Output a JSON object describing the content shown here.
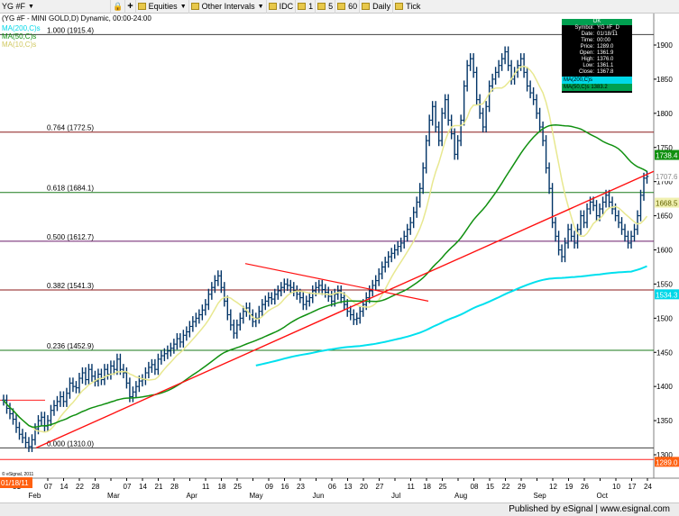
{
  "toolbar": {
    "symbol": "YG #F",
    "equities": "Equities",
    "other_intervals": "Other Intervals",
    "idc": "IDC",
    "i1": "1",
    "i5": "5",
    "i60": "60",
    "daily": "Daily",
    "tick": "Tick"
  },
  "chart": {
    "title": "(YG #F - MINI GOLD,D) Dynamic, 00:00-24:00",
    "legend_ma200": "MA(200,C)s",
    "legend_ma50": "MA(50,C)s",
    "legend_ma10": "MA(10,C)s",
    "copyright": "© eSignal, 2011",
    "date_label": "01/18/11"
  },
  "databox": {
    "header": "OK",
    "rows": [
      {
        "k": "Symbol:",
        "v": "YG #F_D"
      },
      {
        "k": "Date:",
        "v": "01/18/11"
      },
      {
        "k": "Time:",
        "v": "00:00"
      },
      {
        "k": "Price:",
        "v": "1289.0"
      },
      {
        "k": "Open:",
        "v": "1361.9"
      },
      {
        "k": "High:",
        "v": "1376.0"
      },
      {
        "k": "Low:",
        "v": "1361.1"
      },
      {
        "k": "Close:",
        "v": "1367.8"
      }
    ],
    "ma200_line": "MA(200,C)s",
    "ma50_line": "MA(50,C)s 1383.2"
  },
  "footer": {
    "published": "Published by eSignal | www.esignal.com"
  },
  "colors": {
    "ma200": "#00e0ee",
    "ma50": "#109010",
    "ma10": "#e8e890",
    "trend": "#ff1010",
    "bars": "#003366"
  },
  "chart_data": {
    "type": "ohlc",
    "y_ticks": [
      1300,
      1350,
      1400,
      1450,
      1500,
      1550,
      1600,
      1650,
      1700,
      1750,
      1800,
      1850,
      1900
    ],
    "x_ticks": [
      "31",
      "Feb",
      "07",
      "14",
      "22",
      "28",
      "Mar",
      "07",
      "14",
      "21",
      "28",
      "Apr",
      "11",
      "18",
      "25",
      "May",
      "09",
      "16",
      "23",
      "Jun",
      "06",
      "13",
      "20",
      "27",
      "Jul",
      "11",
      "18",
      "25",
      "Aug",
      "08",
      "15",
      "22",
      "29",
      "Sep",
      "12",
      "19",
      "26",
      "Oct",
      "10",
      "17",
      "24"
    ],
    "fib_levels": [
      {
        "label": "1.000 (1915.4)",
        "value": 1915.4,
        "color": "#404040"
      },
      {
        "label": "0.764 (1772.5)",
        "value": 1772.5,
        "color": "#8b1a1a"
      },
      {
        "label": "0.618 (1684.1)",
        "value": 1684.1,
        "color": "#1a7a1a"
      },
      {
        "label": "0.500 (1612.7)",
        "value": 1612.7,
        "color": "#6a1a6a"
      },
      {
        "label": "0.382 (1541.3)",
        "value": 1541.3,
        "color": "#8b1a1a"
      },
      {
        "label": "0.236 (1452.9)",
        "value": 1452.9,
        "color": "#1a7a1a"
      },
      {
        "label": "0.000 (1310.0)",
        "value": 1310.0,
        "color": "#404040"
      }
    ],
    "price_tags": [
      {
        "text": "1738.4",
        "value": 1738.4,
        "bg": "#109010",
        "fg": "#ffffff"
      },
      {
        "text": "1707.6",
        "value": 1707.6,
        "bg": "#ffffff",
        "fg": "#888888"
      },
      {
        "text": "1668.5",
        "value": 1668.5,
        "bg": "#f0f0b0",
        "fg": "#606000"
      },
      {
        "text": "1534.3",
        "value": 1534.3,
        "bg": "#00d8e8",
        "fg": "#ffffff"
      },
      {
        "text": "1289.0",
        "value": 1289.0,
        "bg": "#ff6010",
        "fg": "#ffffff"
      }
    ],
    "levels_y": [
      1380,
      1293
    ],
    "close": [
      1380,
      1368,
      1360,
      1352,
      1340,
      1330,
      1325,
      1318,
      1312,
      1322,
      1338,
      1350,
      1355,
      1342,
      1350,
      1365,
      1372,
      1378,
      1385,
      1378,
      1390,
      1405,
      1400,
      1398,
      1412,
      1420,
      1410,
      1425,
      1415,
      1408,
      1418,
      1410,
      1425,
      1418,
      1430,
      1425,
      1440,
      1425,
      1420,
      1405,
      1385,
      1392,
      1400,
      1408,
      1410,
      1420,
      1428,
      1432,
      1425,
      1440,
      1445,
      1448,
      1452,
      1456,
      1462,
      1470,
      1465,
      1475,
      1480,
      1488,
      1495,
      1500,
      1505,
      1512,
      1520,
      1535,
      1545,
      1555,
      1562,
      1545,
      1525,
      1505,
      1490,
      1478,
      1490,
      1500,
      1510,
      1515,
      1505,
      1495,
      1500,
      1510,
      1520,
      1525,
      1530,
      1528,
      1535,
      1540,
      1545,
      1550,
      1548,
      1545,
      1540,
      1535,
      1530,
      1520,
      1525,
      1530,
      1540,
      1545,
      1548,
      1542,
      1538,
      1532,
      1525,
      1535,
      1540,
      1530,
      1520,
      1510,
      1505,
      1498,
      1500,
      1510,
      1520,
      1530,
      1540,
      1548,
      1555,
      1565,
      1575,
      1582,
      1590,
      1595,
      1600,
      1605,
      1610,
      1620,
      1630,
      1640,
      1655,
      1670,
      1690,
      1720,
      1760,
      1790,
      1810,
      1780,
      1760,
      1800,
      1820,
      1790,
      1770,
      1740,
      1760,
      1790,
      1840,
      1870,
      1880,
      1860,
      1820,
      1800,
      1780,
      1810,
      1840,
      1850,
      1860,
      1870,
      1880,
      1890,
      1870,
      1850,
      1860,
      1870,
      1880,
      1860,
      1840,
      1830,
      1820,
      1800,
      1780,
      1760,
      1720,
      1690,
      1640,
      1620,
      1600,
      1590,
      1610,
      1630,
      1620,
      1610,
      1630,
      1650,
      1640,
      1660,
      1670,
      1665,
      1650,
      1660,
      1670,
      1680,
      1670,
      1660,
      1650,
      1640,
      1630,
      1620,
      1610,
      1620,
      1630,
      1650,
      1680,
      1705,
      1707.6
    ]
  }
}
